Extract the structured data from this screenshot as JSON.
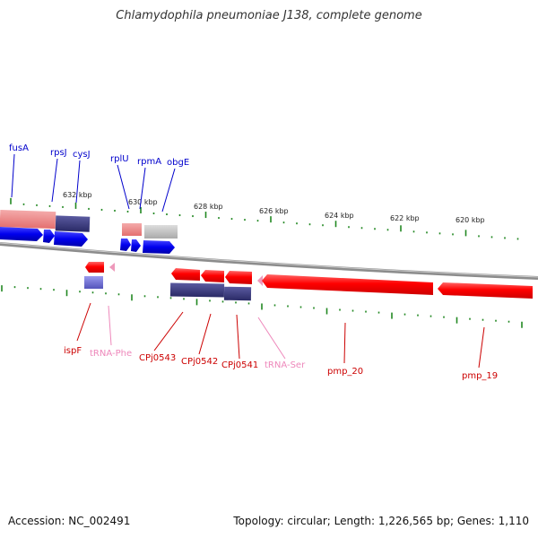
{
  "title": "Chlamydophila pneumoniae J138, complete genome",
  "footer": {
    "accession": "Accession: NC_002491",
    "topology": "Topology: circular; Length: 1,226,565 bp; Genes: 1,110"
  },
  "scale_labels": [
    "632 kbp",
    "630 kbp",
    "628 kbp",
    "626 kbp",
    "624 kbp",
    "622 kbp",
    "620 kbp"
  ],
  "top_genes": [
    {
      "name": "fusA",
      "color": "#0000cc"
    },
    {
      "name": "rpsJ",
      "color": "#0000cc"
    },
    {
      "name": "cysJ",
      "color": "#0000cc"
    },
    {
      "name": "rplU",
      "color": "#0000cc"
    },
    {
      "name": "rpmA",
      "color": "#0000cc"
    },
    {
      "name": "obgE",
      "color": "#0000cc"
    }
  ],
  "bottom_genes": [
    {
      "name": "ispF",
      "color": "#cc0000"
    },
    {
      "name": "tRNA-Phe",
      "color": "#ee88bb"
    },
    {
      "name": "CPj0543",
      "color": "#cc0000"
    },
    {
      "name": "CPj0542",
      "color": "#cc0000"
    },
    {
      "name": "CPj0541",
      "color": "#cc0000"
    },
    {
      "name": "tRNA-Ser",
      "color": "#ee88bb"
    },
    {
      "name": "pmp_20",
      "color": "#cc0000"
    },
    {
      "name": "pmp_19",
      "color": "#cc0000"
    }
  ],
  "colors": {
    "forward_gene": "#0000ee",
    "reverse_gene": "#ee0000",
    "rna_pink": "#ee99bb",
    "cds_salmon": "#ee8080",
    "cds_navy": "#3a3a80",
    "cds_gray": "#bbbbbb",
    "tick_green": "#228822",
    "backbone": "#888888"
  }
}
